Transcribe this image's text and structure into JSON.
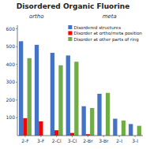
{
  "chart_data": {
    "type": "bar",
    "title": "Disordered Organic Fluorine",
    "annotations": [
      "ortho",
      "meta"
    ],
    "categories": [
      "2-F",
      "3-F",
      "2-Cl",
      "3-Cl",
      "2-Br",
      "3-Br",
      "2-I",
      "3-I"
    ],
    "series": [
      {
        "name": "Disordered structures",
        "color": "#4472C4",
        "values": [
          530,
          510,
          465,
          450,
          165,
          235,
          95,
          65
        ]
      },
      {
        "name": "Disorder at ortho/meta position",
        "color": "#FF0000",
        "values": [
          98,
          80,
          30,
          15,
          8,
          0,
          0,
          0
        ]
      },
      {
        "name": "Disorder at other parts of ring",
        "color": "#70AD47",
        "values": [
          435,
          0,
          395,
          415,
          155,
          240,
          85,
          55
        ]
      }
    ],
    "ylim": [
      0,
      620
    ],
    "yticks": [
      100,
      200,
      300,
      400,
      500,
      600
    ],
    "grid": false,
    "legend": "upper right"
  }
}
